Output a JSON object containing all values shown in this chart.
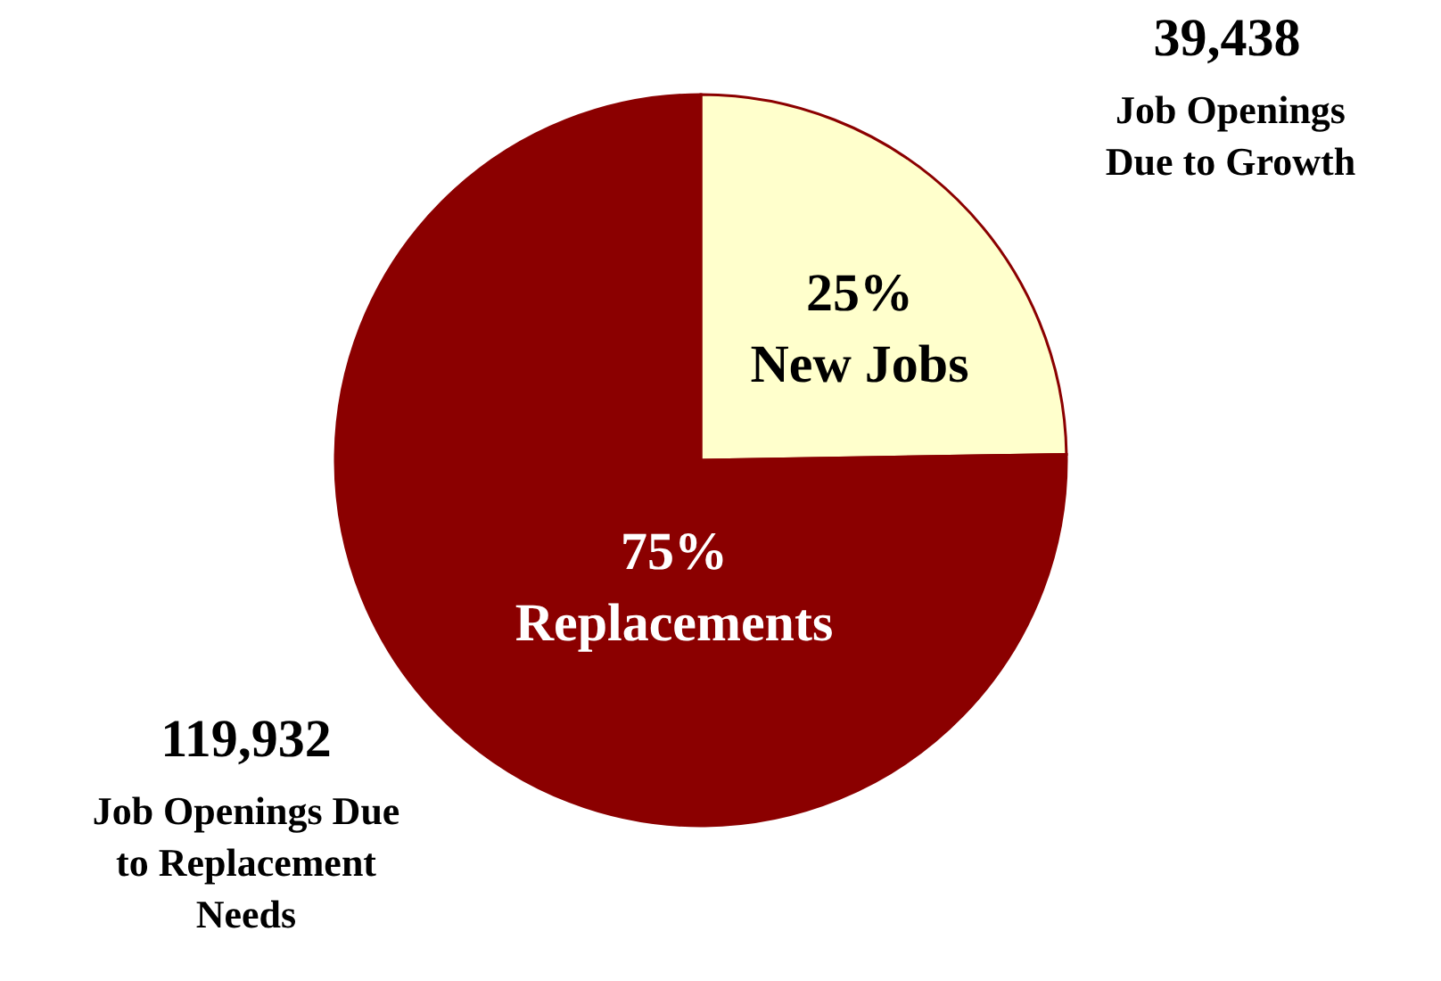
{
  "chart_data": {
    "type": "pie",
    "categories": [
      "New Jobs",
      "Replacements"
    ],
    "values": [
      39438,
      119932
    ],
    "colors": [
      "#ffffcc",
      "#8b0000"
    ],
    "value_labels": [
      "39,438",
      "119,932"
    ],
    "annotations": [
      "25%",
      "75%",
      "Job Openings\nDue to Growth",
      "Job Openings Due\nto Replacement\nNeeds"
    ]
  }
}
